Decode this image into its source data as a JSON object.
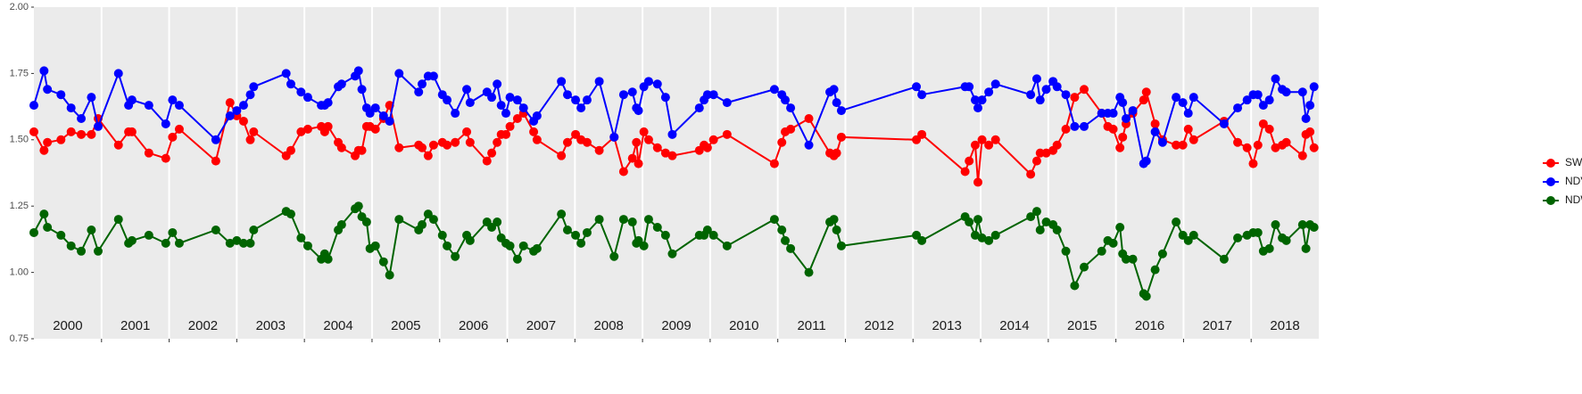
{
  "chart_data": {
    "type": "line",
    "x": [
      2000.0,
      2000.15,
      2000.2,
      2000.4,
      2000.55,
      2000.7,
      2000.85,
      2000.95,
      2001.25,
      2001.4,
      2001.45,
      2001.7,
      2001.95,
      2002.05,
      2002.15,
      2002.69,
      2002.9,
      2003.0,
      2003.1,
      2003.2,
      2003.25,
      2003.73,
      2003.8,
      2003.95,
      2004.05,
      2004.25,
      2004.3,
      2004.35,
      2004.5,
      2004.55,
      2004.75,
      2004.8,
      2004.85,
      2004.92,
      2004.97,
      2005.05,
      2005.17,
      2005.26,
      2005.4,
      2005.69,
      2005.74,
      2005.83,
      2005.91,
      2006.04,
      2006.11,
      2006.23,
      2006.4,
      2006.45,
      2006.7,
      2006.77,
      2006.85,
      2006.91,
      2006.98,
      2007.04,
      2007.15,
      2007.24,
      2007.39,
      2007.44,
      2007.8,
      2007.89,
      2008.01,
      2008.09,
      2008.18,
      2008.36,
      2008.58,
      2008.72,
      2008.85,
      2008.91,
      2008.94,
      2009.02,
      2009.09,
      2009.22,
      2009.34,
      2009.44,
      2009.84,
      2009.91,
      2009.96,
      2010.05,
      2010.25,
      2010.95,
      2011.06,
      2011.11,
      2011.19,
      2011.46,
      2011.77,
      2011.83,
      2011.87,
      2011.94,
      2013.05,
      2013.13,
      2013.77,
      2013.83,
      2013.92,
      2013.96,
      2014.02,
      2014.12,
      2014.22,
      2014.74,
      2014.83,
      2014.88,
      2014.97,
      2015.07,
      2015.13,
      2015.26,
      2015.39,
      2015.53,
      2015.79,
      2015.88,
      2015.96,
      2016.06,
      2016.1,
      2016.15,
      2016.25,
      2016.41,
      2016.45,
      2016.58,
      2016.69,
      2016.89,
      2016.99,
      2017.07,
      2017.15,
      2017.6,
      2017.8,
      2017.94,
      2018.03,
      2018.1,
      2018.18,
      2018.27,
      2018.36,
      2018.46,
      2018.52,
      2018.76,
      2018.81,
      2018.87,
      2018.93
    ],
    "series": [
      {
        "name": "SWIR",
        "color": "#ff0000",
        "values": [
          1.53,
          1.46,
          1.49,
          1.5,
          1.53,
          1.52,
          1.52,
          1.58,
          1.48,
          1.53,
          1.53,
          1.45,
          1.43,
          1.51,
          1.54,
          1.42,
          1.64,
          1.59,
          1.57,
          1.5,
          1.53,
          1.44,
          1.46,
          1.53,
          1.54,
          1.55,
          1.53,
          1.55,
          1.49,
          1.47,
          1.44,
          1.46,
          1.46,
          1.55,
          1.55,
          1.54,
          1.58,
          1.63,
          1.47,
          1.48,
          1.47,
          1.44,
          1.48,
          1.49,
          1.48,
          1.49,
          1.53,
          1.49,
          1.42,
          1.45,
          1.49,
          1.52,
          1.52,
          1.55,
          1.58,
          1.6,
          1.53,
          1.5,
          1.44,
          1.49,
          1.52,
          1.5,
          1.49,
          1.46,
          1.51,
          1.38,
          1.43,
          1.49,
          1.41,
          1.53,
          1.5,
          1.47,
          1.45,
          1.44,
          1.46,
          1.48,
          1.47,
          1.5,
          1.52,
          1.41,
          1.49,
          1.53,
          1.54,
          1.58,
          1.45,
          1.44,
          1.45,
          1.51,
          1.5,
          1.52,
          1.38,
          1.42,
          1.48,
          1.34,
          1.5,
          1.48,
          1.5,
          1.37,
          1.42,
          1.45,
          1.45,
          1.46,
          1.48,
          1.54,
          1.66,
          1.69,
          1.6,
          1.55,
          1.54,
          1.47,
          1.51,
          1.56,
          1.6,
          1.65,
          1.68,
          1.56,
          1.5,
          1.48,
          1.48,
          1.54,
          1.5,
          1.57,
          1.49,
          1.47,
          1.41,
          1.48,
          1.56,
          1.54,
          1.47,
          1.48,
          1.49,
          1.44,
          1.52,
          1.53,
          1.47
        ]
      },
      {
        "name": "NDVI",
        "color": "#0000ff",
        "values": [
          1.63,
          1.76,
          1.69,
          1.67,
          1.62,
          1.58,
          1.66,
          1.55,
          1.75,
          1.63,
          1.65,
          1.63,
          1.56,
          1.65,
          1.63,
          1.5,
          1.59,
          1.61,
          1.63,
          1.67,
          1.7,
          1.75,
          1.71,
          1.68,
          1.66,
          1.63,
          1.63,
          1.64,
          1.7,
          1.71,
          1.74,
          1.76,
          1.69,
          1.62,
          1.6,
          1.62,
          1.59,
          1.57,
          1.75,
          1.68,
          1.71,
          1.74,
          1.74,
          1.67,
          1.65,
          1.6,
          1.69,
          1.64,
          1.68,
          1.66,
          1.71,
          1.63,
          1.6,
          1.66,
          1.65,
          1.62,
          1.57,
          1.59,
          1.72,
          1.67,
          1.65,
          1.62,
          1.65,
          1.72,
          1.51,
          1.67,
          1.68,
          1.62,
          1.61,
          1.7,
          1.72,
          1.71,
          1.66,
          1.52,
          1.62,
          1.65,
          1.67,
          1.67,
          1.64,
          1.69,
          1.67,
          1.65,
          1.62,
          1.48,
          1.68,
          1.69,
          1.64,
          1.61,
          1.7,
          1.67,
          1.7,
          1.7,
          1.65,
          1.62,
          1.65,
          1.68,
          1.71,
          1.67,
          1.73,
          1.65,
          1.69,
          1.72,
          1.7,
          1.67,
          1.55,
          1.55,
          1.6,
          1.6,
          1.6,
          1.66,
          1.64,
          1.58,
          1.61,
          1.41,
          1.42,
          1.53,
          1.49,
          1.66,
          1.64,
          1.6,
          1.66,
          1.56,
          1.62,
          1.65,
          1.67,
          1.67,
          1.63,
          1.65,
          1.73,
          1.69,
          1.68,
          1.68,
          1.58,
          1.63,
          1.7
        ]
      },
      {
        "name": "NDWI",
        "color": "#006400",
        "values": [
          1.15,
          1.22,
          1.17,
          1.14,
          1.1,
          1.08,
          1.16,
          1.08,
          1.2,
          1.11,
          1.12,
          1.14,
          1.11,
          1.15,
          1.11,
          1.16,
          1.11,
          1.12,
          1.11,
          1.11,
          1.16,
          1.23,
          1.22,
          1.13,
          1.1,
          1.05,
          1.07,
          1.05,
          1.16,
          1.18,
          1.24,
          1.25,
          1.21,
          1.19,
          1.09,
          1.1,
          1.04,
          0.99,
          1.2,
          1.16,
          1.18,
          1.22,
          1.2,
          1.14,
          1.1,
          1.06,
          1.14,
          1.12,
          1.19,
          1.17,
          1.19,
          1.13,
          1.11,
          1.1,
          1.05,
          1.1,
          1.08,
          1.09,
          1.22,
          1.16,
          1.14,
          1.11,
          1.15,
          1.2,
          1.06,
          1.2,
          1.19,
          1.11,
          1.12,
          1.1,
          1.2,
          1.17,
          1.14,
          1.07,
          1.14,
          1.14,
          1.16,
          1.14,
          1.1,
          1.2,
          1.16,
          1.12,
          1.09,
          1.0,
          1.19,
          1.2,
          1.16,
          1.1,
          1.14,
          1.12,
          1.21,
          1.19,
          1.14,
          1.2,
          1.13,
          1.12,
          1.14,
          1.21,
          1.23,
          1.16,
          1.19,
          1.18,
          1.16,
          1.08,
          0.95,
          1.02,
          1.08,
          1.12,
          1.11,
          1.17,
          1.07,
          1.05,
          1.05,
          0.92,
          0.91,
          1.01,
          1.07,
          1.19,
          1.14,
          1.12,
          1.14,
          1.05,
          1.13,
          1.14,
          1.15,
          1.15,
          1.08,
          1.09,
          1.18,
          1.13,
          1.12,
          1.18,
          1.09,
          1.18,
          1.17
        ]
      }
    ],
    "xlim": [
      2000,
      2019
    ],
    "xticks": [
      2001,
      2002,
      2003,
      2004,
      2005,
      2006,
      2007,
      2008,
      2009,
      2010,
      2011,
      2012,
      2013,
      2014,
      2015,
      2016,
      2017,
      2018
    ],
    "year_labels": [
      "2000",
      "2001",
      "2002",
      "2003",
      "2004",
      "2005",
      "2006",
      "2007",
      "2008",
      "2009",
      "2010",
      "2011",
      "2012",
      "2013",
      "2014",
      "2015",
      "2016",
      "2017",
      "2018"
    ],
    "ylim": [
      0.75,
      2.0
    ],
    "yticks": [
      0.75,
      {
        "value": 1,
        "label": "1.00"
      },
      1.25,
      {
        "value": 1.5,
        "label": "1.50"
      },
      1.75,
      {
        "value": 2,
        "label": "2.00"
      }
    ],
    "grid": false,
    "xgrid": true,
    "legend": "right"
  }
}
